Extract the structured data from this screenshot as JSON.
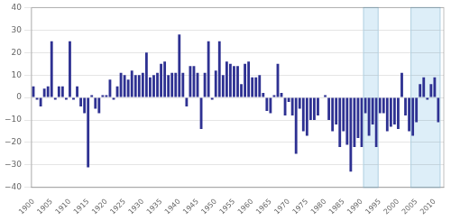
{
  "chart_data": {
    "type": "bar",
    "x": [
      1900,
      1901,
      1902,
      1903,
      1904,
      1905,
      1906,
      1907,
      1908,
      1909,
      1910,
      1911,
      1912,
      1913,
      1914,
      1915,
      1916,
      1917,
      1918,
      1919,
      1920,
      1921,
      1922,
      1923,
      1924,
      1925,
      1926,
      1927,
      1928,
      1929,
      1930,
      1931,
      1932,
      1933,
      1934,
      1935,
      1936,
      1937,
      1938,
      1939,
      1940,
      1941,
      1942,
      1943,
      1944,
      1945,
      1946,
      1947,
      1948,
      1949,
      1950,
      1951,
      1952,
      1953,
      1954,
      1955,
      1956,
      1957,
      1958,
      1959,
      1960,
      1961,
      1962,
      1963,
      1964,
      1965,
      1966,
      1967,
      1968,
      1969,
      1970,
      1971,
      1972,
      1973,
      1974,
      1975,
      1976,
      1977,
      1978,
      1979,
      1980,
      1981,
      1982,
      1983,
      1984,
      1985,
      1986,
      1987,
      1988,
      1989,
      1990,
      1991,
      1992,
      1993,
      1994,
      1995,
      1996,
      1997,
      1998,
      1999,
      2000,
      2001,
      2002,
      2003,
      2004,
      2005,
      2006,
      2007,
      2008,
      2009,
      2010,
      2011
    ],
    "values": [
      5,
      -1,
      -4,
      4,
      5,
      25,
      -1,
      5,
      5,
      -1,
      25,
      -1,
      5,
      -4,
      -7,
      -31,
      1,
      -5,
      -7,
      1,
      1,
      8,
      -1,
      5,
      11,
      10,
      8,
      12,
      10,
      10,
      11,
      20,
      9,
      10,
      11,
      15,
      16,
      10,
      11,
      11,
      28,
      11,
      -4,
      14,
      14,
      11,
      -14,
      11,
      25,
      -1,
      12,
      25,
      10,
      16,
      15,
      14,
      14,
      6,
      15,
      16,
      9,
      9,
      10,
      2,
      -6,
      -7,
      1,
      15,
      2,
      -8,
      -2,
      -8,
      -25,
      -5,
      -15,
      -17,
      -10,
      -10,
      -8,
      0,
      1,
      -10,
      -15,
      -12,
      -22,
      -15,
      -21,
      -33,
      -22,
      -18,
      -22,
      -7,
      -17,
      -12,
      -22,
      -7,
      -7,
      -15,
      -13,
      -12,
      -14,
      11,
      -8,
      -15,
      -17,
      -11,
      6,
      9,
      -1,
      6,
      9,
      -11
    ],
    "color": "#2e3192",
    "highlights": [
      {
        "start": 1991,
        "end": 1994,
        "color": "#ddeef8"
      },
      {
        "start": 2004,
        "end": 2011,
        "color": "#ddeef8"
      }
    ],
    "xlim": [
      1899.5,
      2012.5
    ],
    "xticks": [
      1900,
      1905,
      1910,
      1915,
      1920,
      1925,
      1930,
      1935,
      1940,
      1945,
      1950,
      1955,
      1960,
      1965,
      1970,
      1975,
      1980,
      1985,
      1990,
      1995,
      2000,
      2005,
      2010
    ],
    "ylim": [
      -40,
      40
    ],
    "yticks": [
      {
        "value": -40,
        "label": "−40"
      },
      {
        "value": -30,
        "label": "−30"
      },
      {
        "value": -20,
        "label": "−20"
      },
      {
        "value": -10,
        "label": "−10"
      },
      0,
      10,
      20,
      30,
      40
    ],
    "grid": true
  }
}
